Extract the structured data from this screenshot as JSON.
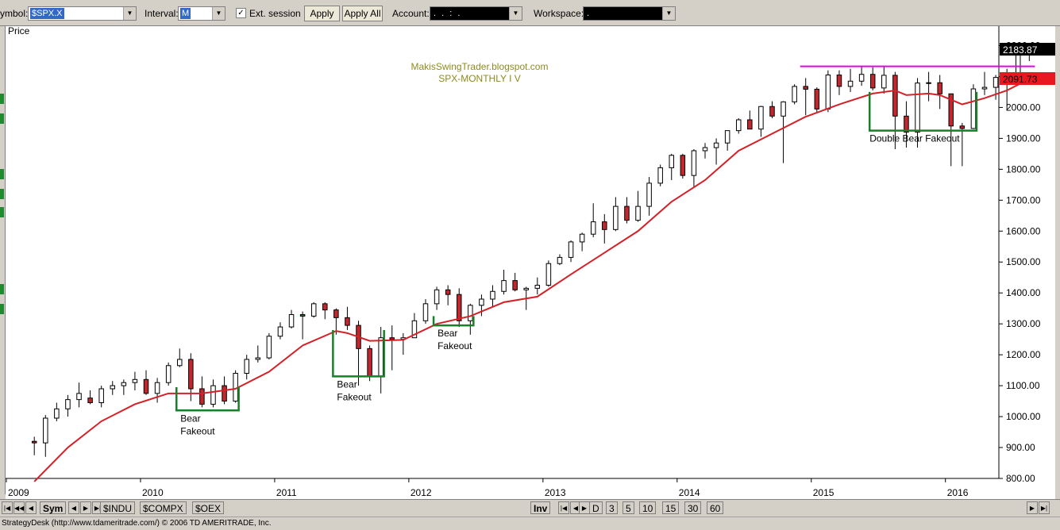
{
  "toolbar": {
    "symbol_label": "ymbol:",
    "symbol_value": "$SPX.X",
    "interval_label": "Interval:",
    "interval_value": "M",
    "ext_session_label": "Ext. session",
    "ext_session_checked": true,
    "apply_label": "Apply",
    "apply_all_label": "Apply All",
    "account_label": "Account:",
    "account_value": ". . : .",
    "workspace_label": "Workspace:",
    "workspace_value": "."
  },
  "chart": {
    "price_label": "Price",
    "watermark_line1": "MakisSwingTrader.blogspot.com",
    "watermark_line2": "SPX-MONTHLY  I V",
    "price_tag_current": "2183.87",
    "price_tag_ma": "2091.73",
    "price_tag_top": "2200.00",
    "colors": {
      "bull": "#ffffff",
      "bear": "#c1272d",
      "wick": "#000000",
      "ma": "#d42128",
      "resistance": "#e600e6",
      "box": "#1a7f2b",
      "watermark": "#8c8c1e",
      "tag_current_bg": "#000000",
      "tag_ma_bg": "#e8181e"
    }
  },
  "chart_data": {
    "type": "candlestick",
    "title": "SPX-MONTHLY  I V",
    "ylabel": "Price",
    "ylim": [
      800,
      2250
    ],
    "ytick_labels": [
      "800.00",
      "900.00",
      "1000.00",
      "1100.00",
      "1200.00",
      "1300.00",
      "1400.00",
      "1500.00",
      "1600.00",
      "1700.00",
      "1800.00",
      "1900.00",
      "2000.00",
      "2100.00",
      "2200.00"
    ],
    "xtick_labels": [
      "2009",
      "2010",
      "2011",
      "2012",
      "2013",
      "2014",
      "2015",
      "2016"
    ],
    "candles": [
      {
        "d": "2009-03",
        "o": 920,
        "h": 935,
        "l": 875,
        "c": 915
      },
      {
        "d": "2009-04",
        "o": 915,
        "h": 1005,
        "l": 870,
        "c": 995
      },
      {
        "d": "2009-05",
        "o": 995,
        "h": 1045,
        "l": 985,
        "c": 1025
      },
      {
        "d": "2009-06",
        "o": 1025,
        "h": 1070,
        "l": 1000,
        "c": 1055
      },
      {
        "d": "2009-07",
        "o": 1055,
        "h": 1110,
        "l": 1030,
        "c": 1075
      },
      {
        "d": "2009-08",
        "o": 1060,
        "h": 1085,
        "l": 1040,
        "c": 1045
      },
      {
        "d": "2009-09",
        "o": 1045,
        "h": 1100,
        "l": 1030,
        "c": 1090
      },
      {
        "d": "2009-10",
        "o": 1090,
        "h": 1115,
        "l": 1070,
        "c": 1100
      },
      {
        "d": "2009-11",
        "o": 1100,
        "h": 1120,
        "l": 1070,
        "c": 1110
      },
      {
        "d": "2009-12",
        "o": 1110,
        "h": 1145,
        "l": 1085,
        "c": 1120
      },
      {
        "d": "2010-01",
        "o": 1120,
        "h": 1150,
        "l": 1070,
        "c": 1075
      },
      {
        "d": "2010-02",
        "o": 1075,
        "h": 1125,
        "l": 1045,
        "c": 1110
      },
      {
        "d": "2010-03",
        "o": 1110,
        "h": 1175,
        "l": 1100,
        "c": 1165
      },
      {
        "d": "2010-04",
        "o": 1165,
        "h": 1220,
        "l": 1160,
        "c": 1185
      },
      {
        "d": "2010-05",
        "o": 1185,
        "h": 1205,
        "l": 1050,
        "c": 1090
      },
      {
        "d": "2010-06",
        "o": 1090,
        "h": 1130,
        "l": 1030,
        "c": 1040
      },
      {
        "d": "2010-07",
        "o": 1040,
        "h": 1120,
        "l": 1030,
        "c": 1100
      },
      {
        "d": "2010-08",
        "o": 1100,
        "h": 1130,
        "l": 1040,
        "c": 1050
      },
      {
        "d": "2010-09",
        "o": 1050,
        "h": 1150,
        "l": 1045,
        "c": 1140
      },
      {
        "d": "2010-10",
        "o": 1140,
        "h": 1200,
        "l": 1120,
        "c": 1185
      },
      {
        "d": "2010-11",
        "o": 1185,
        "h": 1230,
        "l": 1175,
        "c": 1190
      },
      {
        "d": "2010-12",
        "o": 1190,
        "h": 1270,
        "l": 1185,
        "c": 1260
      },
      {
        "d": "2011-01",
        "o": 1260,
        "h": 1305,
        "l": 1250,
        "c": 1290
      },
      {
        "d": "2011-02",
        "o": 1290,
        "h": 1345,
        "l": 1285,
        "c": 1330
      },
      {
        "d": "2011-03",
        "o": 1330,
        "h": 1340,
        "l": 1250,
        "c": 1325
      },
      {
        "d": "2011-04",
        "o": 1325,
        "h": 1370,
        "l": 1320,
        "c": 1365
      },
      {
        "d": "2011-05",
        "o": 1365,
        "h": 1370,
        "l": 1315,
        "c": 1345
      },
      {
        "d": "2011-06",
        "o": 1345,
        "h": 1350,
        "l": 1265,
        "c": 1320
      },
      {
        "d": "2011-07",
        "o": 1320,
        "h": 1355,
        "l": 1280,
        "c": 1295
      },
      {
        "d": "2011-08",
        "o": 1295,
        "h": 1310,
        "l": 1100,
        "c": 1220
      },
      {
        "d": "2011-09",
        "o": 1220,
        "h": 1230,
        "l": 1115,
        "c": 1130
      },
      {
        "d": "2011-10",
        "o": 1130,
        "h": 1290,
        "l": 1075,
        "c": 1255
      },
      {
        "d": "2011-11",
        "o": 1255,
        "h": 1295,
        "l": 1150,
        "c": 1250
      },
      {
        "d": "2011-12",
        "o": 1250,
        "h": 1270,
        "l": 1200,
        "c": 1255
      },
      {
        "d": "2012-01",
        "o": 1255,
        "h": 1335,
        "l": 1260,
        "c": 1310
      },
      {
        "d": "2012-02",
        "o": 1310,
        "h": 1380,
        "l": 1300,
        "c": 1365
      },
      {
        "d": "2012-03",
        "o": 1365,
        "h": 1420,
        "l": 1345,
        "c": 1410
      },
      {
        "d": "2012-04",
        "o": 1410,
        "h": 1425,
        "l": 1360,
        "c": 1395
      },
      {
        "d": "2012-05",
        "o": 1395,
        "h": 1415,
        "l": 1290,
        "c": 1310
      },
      {
        "d": "2012-06",
        "o": 1310,
        "h": 1365,
        "l": 1265,
        "c": 1360
      },
      {
        "d": "2012-07",
        "o": 1360,
        "h": 1395,
        "l": 1325,
        "c": 1380
      },
      {
        "d": "2012-08",
        "o": 1380,
        "h": 1425,
        "l": 1355,
        "c": 1405
      },
      {
        "d": "2012-09",
        "o": 1405,
        "h": 1475,
        "l": 1395,
        "c": 1440
      },
      {
        "d": "2012-10",
        "o": 1440,
        "h": 1465,
        "l": 1405,
        "c": 1410
      },
      {
        "d": "2012-11",
        "o": 1410,
        "h": 1420,
        "l": 1345,
        "c": 1415
      },
      {
        "d": "2012-12",
        "o": 1415,
        "h": 1450,
        "l": 1395,
        "c": 1425
      },
      {
        "d": "2013-01",
        "o": 1425,
        "h": 1505,
        "l": 1420,
        "c": 1495
      },
      {
        "d": "2013-02",
        "o": 1495,
        "h": 1525,
        "l": 1490,
        "c": 1515
      },
      {
        "d": "2013-03",
        "o": 1515,
        "h": 1570,
        "l": 1500,
        "c": 1565
      },
      {
        "d": "2013-04",
        "o": 1565,
        "h": 1595,
        "l": 1535,
        "c": 1590
      },
      {
        "d": "2013-05",
        "o": 1590,
        "h": 1690,
        "l": 1580,
        "c": 1630
      },
      {
        "d": "2013-06",
        "o": 1630,
        "h": 1655,
        "l": 1560,
        "c": 1605
      },
      {
        "d": "2013-07",
        "o": 1605,
        "h": 1710,
        "l": 1600,
        "c": 1680
      },
      {
        "d": "2013-08",
        "o": 1680,
        "h": 1710,
        "l": 1625,
        "c": 1635
      },
      {
        "d": "2013-09",
        "o": 1635,
        "h": 1730,
        "l": 1630,
        "c": 1680
      },
      {
        "d": "2013-10",
        "o": 1680,
        "h": 1775,
        "l": 1650,
        "c": 1755
      },
      {
        "d": "2013-11",
        "o": 1755,
        "h": 1815,
        "l": 1745,
        "c": 1805
      },
      {
        "d": "2013-12",
        "o": 1805,
        "h": 1850,
        "l": 1765,
        "c": 1845
      },
      {
        "d": "2014-01",
        "o": 1845,
        "h": 1850,
        "l": 1770,
        "c": 1780
      },
      {
        "d": "2014-02",
        "o": 1780,
        "h": 1865,
        "l": 1740,
        "c": 1860
      },
      {
        "d": "2014-03",
        "o": 1860,
        "h": 1885,
        "l": 1835,
        "c": 1870
      },
      {
        "d": "2014-04",
        "o": 1870,
        "h": 1900,
        "l": 1815,
        "c": 1885
      },
      {
        "d": "2014-05",
        "o": 1885,
        "h": 1925,
        "l": 1860,
        "c": 1925
      },
      {
        "d": "2014-06",
        "o": 1925,
        "h": 1965,
        "l": 1915,
        "c": 1960
      },
      {
        "d": "2014-07",
        "o": 1960,
        "h": 1990,
        "l": 1930,
        "c": 1930
      },
      {
        "d": "2014-08",
        "o": 1930,
        "h": 2005,
        "l": 1905,
        "c": 2003
      },
      {
        "d": "2014-09",
        "o": 2003,
        "h": 2020,
        "l": 1965,
        "c": 1972
      },
      {
        "d": "2014-10",
        "o": 1972,
        "h": 2020,
        "l": 1820,
        "c": 2018
      },
      {
        "d": "2014-11",
        "o": 2018,
        "h": 2075,
        "l": 2010,
        "c": 2068
      },
      {
        "d": "2014-12",
        "o": 2068,
        "h": 2095,
        "l": 1975,
        "c": 2059
      },
      {
        "d": "2015-01",
        "o": 2059,
        "h": 2065,
        "l": 1985,
        "c": 1995
      },
      {
        "d": "2015-02",
        "o": 1995,
        "h": 2120,
        "l": 1985,
        "c": 2105
      },
      {
        "d": "2015-03",
        "o": 2105,
        "h": 2120,
        "l": 2040,
        "c": 2068
      },
      {
        "d": "2015-04",
        "o": 2068,
        "h": 2125,
        "l": 2050,
        "c": 2085
      },
      {
        "d": "2015-05",
        "o": 2085,
        "h": 2135,
        "l": 2070,
        "c": 2107
      },
      {
        "d": "2015-06",
        "o": 2107,
        "h": 2130,
        "l": 2055,
        "c": 2063
      },
      {
        "d": "2015-07",
        "o": 2063,
        "h": 2135,
        "l": 2045,
        "c": 2104
      },
      {
        "d": "2015-08",
        "o": 2104,
        "h": 2115,
        "l": 1865,
        "c": 1972
      },
      {
        "d": "2015-09",
        "o": 1972,
        "h": 2020,
        "l": 1870,
        "c": 1920
      },
      {
        "d": "2015-10",
        "o": 1920,
        "h": 2095,
        "l": 1870,
        "c": 2079
      },
      {
        "d": "2015-11",
        "o": 2079,
        "h": 2115,
        "l": 2020,
        "c": 2080
      },
      {
        "d": "2015-12",
        "o": 2080,
        "h": 2105,
        "l": 1995,
        "c": 2044
      },
      {
        "d": "2016-01",
        "o": 2044,
        "h": 2045,
        "l": 1810,
        "c": 1940
      },
      {
        "d": "2016-02",
        "o": 1940,
        "h": 1950,
        "l": 1810,
        "c": 1932
      },
      {
        "d": "2016-03",
        "o": 1932,
        "h": 2075,
        "l": 1930,
        "c": 2060
      },
      {
        "d": "2016-04",
        "o": 2060,
        "h": 2115,
        "l": 2040,
        "c": 2065
      },
      {
        "d": "2016-05",
        "o": 2065,
        "h": 2105,
        "l": 2025,
        "c": 2097
      },
      {
        "d": "2016-06",
        "o": 2097,
        "h": 2125,
        "l": 1990,
        "c": 2099
      },
      {
        "d": "2016-07",
        "o": 2099,
        "h": 2190,
        "l": 2075,
        "c": 2174
      },
      {
        "d": "2016-08",
        "o": 2174,
        "h": 2195,
        "l": 2150,
        "c": 2183.87
      }
    ],
    "moving_average": [
      [
        "2009-03",
        790
      ],
      [
        "2009-06",
        900
      ],
      [
        "2009-09",
        985
      ],
      [
        "2009-12",
        1040
      ],
      [
        "2010-03",
        1075
      ],
      [
        "2010-06",
        1075
      ],
      [
        "2010-09",
        1090
      ],
      [
        "2010-12",
        1145
      ],
      [
        "2011-03",
        1230
      ],
      [
        "2011-06",
        1277
      ],
      [
        "2011-07",
        1270
      ],
      [
        "2011-09",
        1245
      ],
      [
        "2011-12",
        1248
      ],
      [
        "2012-03",
        1300
      ],
      [
        "2012-06",
        1325
      ],
      [
        "2012-09",
        1370
      ],
      [
        "2012-12",
        1388
      ],
      [
        "2013-03",
        1460
      ],
      [
        "2013-06",
        1530
      ],
      [
        "2013-09",
        1600
      ],
      [
        "2013-12",
        1695
      ],
      [
        "2014-03",
        1765
      ],
      [
        "2014-06",
        1860
      ],
      [
        "2014-09",
        1915
      ],
      [
        "2014-12",
        1970
      ],
      [
        "2015-03",
        2010
      ],
      [
        "2015-06",
        2045
      ],
      [
        "2015-08",
        2055
      ],
      [
        "2015-09",
        2040
      ],
      [
        "2015-11",
        2045
      ],
      [
        "2015-12",
        2040
      ],
      [
        "2016-02",
        2010
      ],
      [
        "2016-04",
        2030
      ],
      [
        "2016-06",
        2055
      ],
      [
        "2016-08",
        2091.73
      ]
    ],
    "resistance_level": 2133,
    "annotations": [
      {
        "text": "Bear\nFakeout",
        "box": {
          "from": "2010-04",
          "to": "2010-09",
          "low": 1020,
          "high": 1095
        }
      },
      {
        "text": "Bear\nFakeout",
        "box": {
          "from": "2011-06",
          "to": "2011-10",
          "low": 1130,
          "high": 1280
        }
      },
      {
        "text": "Bear\nFakeout",
        "box": {
          "from": "2012-03",
          "to": "2012-06",
          "low": 1295,
          "high": 1325
        }
      },
      {
        "text": "Double Bear Fakeout",
        "box": {
          "from": "2015-06",
          "to": "2016-03",
          "low": 1925,
          "high": 2050
        }
      }
    ]
  },
  "bottom": {
    "sym_label": "Sym",
    "tabs": [
      "$INDU",
      "$COMPX",
      "$OEX"
    ],
    "inv_label": "Inv",
    "intervals": [
      "D",
      "3",
      "5",
      "10",
      "15",
      "30",
      "60"
    ]
  },
  "status": {
    "text": "StrategyDesk (http://www.tdameritrade.com/) © 2006 TD AMERITRADE, Inc."
  }
}
